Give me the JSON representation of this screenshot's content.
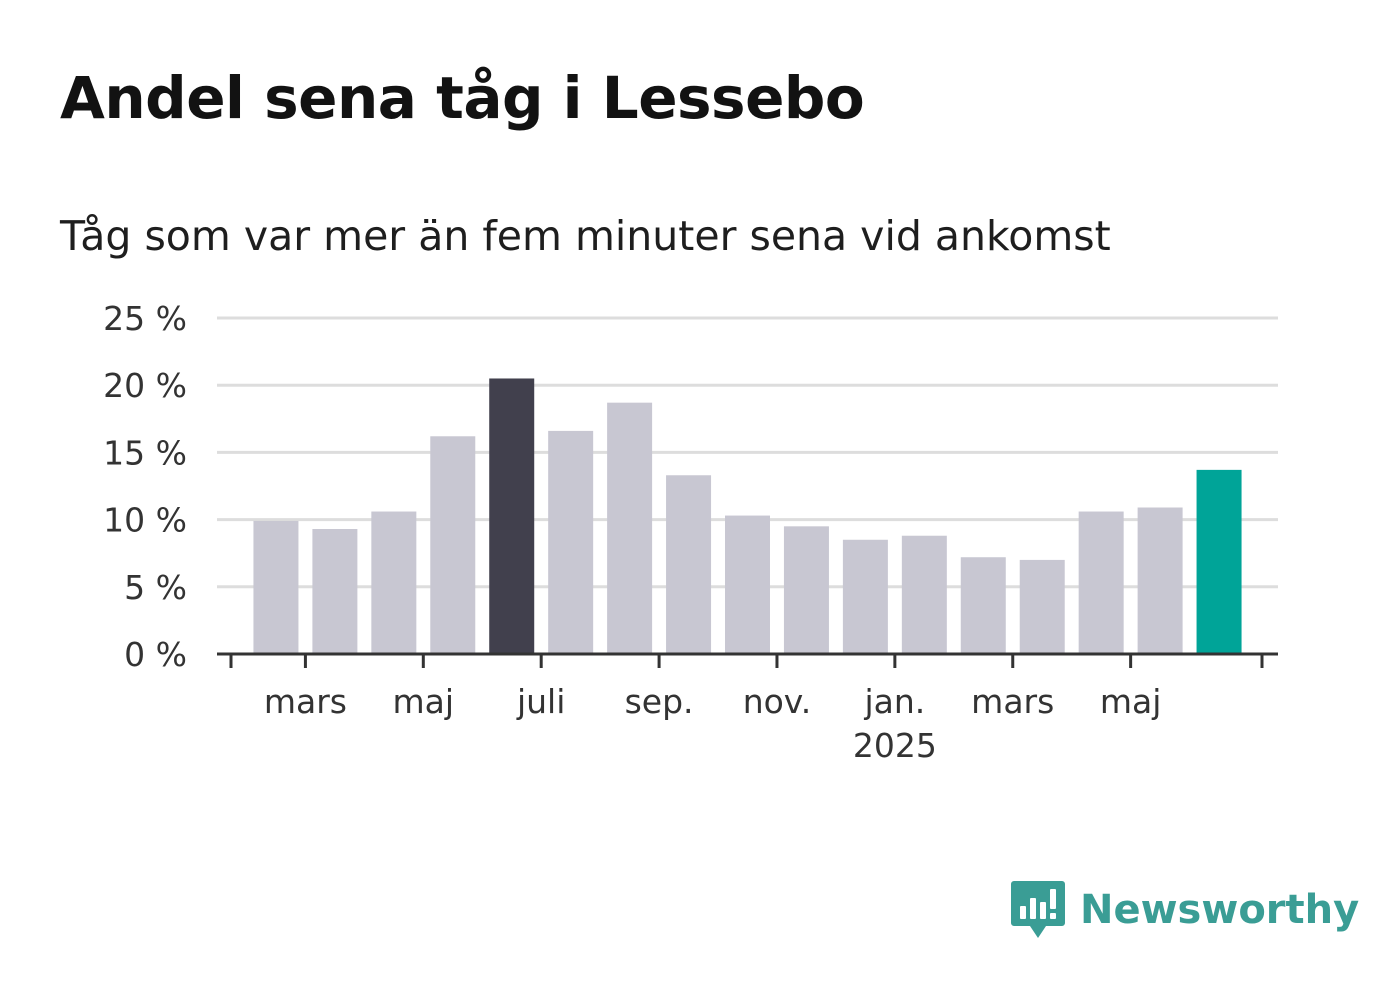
{
  "header": {
    "title": "Andel sena tåg i Lessebo",
    "subtitle": "Tåg som var mer än fem minuter sena vid ankomst"
  },
  "brand": {
    "name": "Newsworthy",
    "icon": "newsworthy-logo-icon",
    "color": "#3a9d95"
  },
  "chart_data": {
    "type": "bar",
    "categories": [
      "2024-02",
      "2024-03",
      "2024-04",
      "2024-05",
      "2024-06",
      "2024-07",
      "2024-08",
      "2024-09",
      "2024-10",
      "2024-11",
      "2024-12",
      "2025-01",
      "2025-02",
      "2025-03",
      "2025-04",
      "2025-05",
      "2025-06"
    ],
    "values": [
      9.9,
      9.3,
      10.6,
      16.2,
      20.5,
      16.6,
      18.7,
      13.3,
      10.3,
      9.5,
      8.5,
      8.8,
      7.2,
      7.0,
      10.6,
      10.9,
      13.7
    ],
    "x_tick_labels": [
      {
        "month": "2024-03",
        "label": "mars"
      },
      {
        "month": "2024-05",
        "label": "maj"
      },
      {
        "month": "2024-07",
        "label": "juli"
      },
      {
        "month": "2024-09",
        "label": "sep."
      },
      {
        "month": "2024-11",
        "label": "nov."
      },
      {
        "month": "2025-01",
        "label": "jan.",
        "sublabel": "2025"
      },
      {
        "month": "2025-03",
        "label": "mars"
      },
      {
        "month": "2025-05",
        "label": "maj"
      }
    ],
    "y_ticks": [
      0,
      5,
      10,
      15,
      20,
      25
    ],
    "y_tick_suffix": " %",
    "ylim": [
      0,
      25
    ],
    "grid": true,
    "colors": {
      "default": "#c8c7d2",
      "max": "#41404d",
      "latest": "#00a498",
      "grid": "#dddddd",
      "axis": "#333333"
    },
    "highlight": {
      "max": "2024-06",
      "latest": "2025-06"
    }
  }
}
